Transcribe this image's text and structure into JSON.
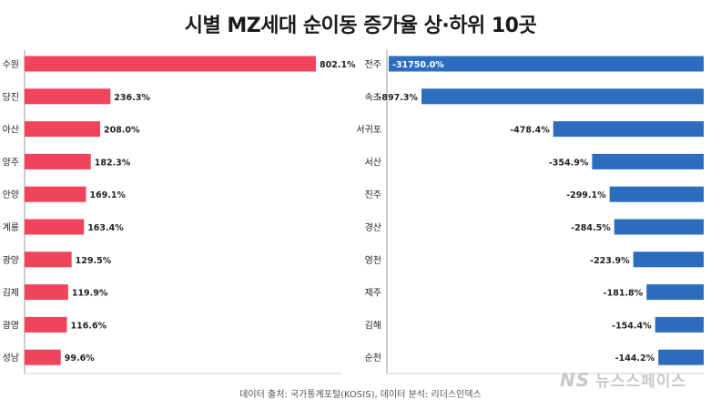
{
  "title": "시별 MZ세대 순이동 증가율 상·하위 10곳",
  "source": "데이터 출처: 국가통계포털(KOSIS), 데이터 분석: 리더스인덱스",
  "watermark": {
    "logo": "NS",
    "text": "뉴스스페이스"
  },
  "colors": {
    "increase": "#f0445d",
    "decrease": "#2c6dbf",
    "axis": "#9a9a9a",
    "text": "#222222"
  },
  "chart_data": [
    {
      "type": "bar",
      "orientation": "horizontal",
      "categories": [
        "수원",
        "당진",
        "아산",
        "양주",
        "안양",
        "계룡",
        "광양",
        "김제",
        "광명",
        "성남"
      ],
      "values": [
        802.1,
        236.3,
        208.0,
        182.3,
        169.1,
        163.4,
        129.5,
        119.9,
        116.6,
        99.6
      ],
      "data_labels": [
        "802.1%",
        "236.3%",
        "208.0%",
        "182.3%",
        "169.1%",
        "163.4%",
        "129.5%",
        "119.9%",
        "116.6%",
        "99.6%"
      ],
      "unit": "%"
    },
    {
      "type": "bar",
      "orientation": "horizontal",
      "categories": [
        "전주",
        "속초",
        "서귀포",
        "서산",
        "진주",
        "경산",
        "영천",
        "제주",
        "김해",
        "순천"
      ],
      "values": [
        -31750.0,
        -897.3,
        -478.4,
        -354.9,
        -299.1,
        -284.5,
        -223.9,
        -181.8,
        -154.4,
        -144.2
      ],
      "data_labels": [
        "-31750.0%",
        "-897.3%",
        "-478.4%",
        "-354.9%",
        "-299.1%",
        "-284.5%",
        "-223.9%",
        "-181.8%",
        "-154.4%",
        "-144.2%"
      ],
      "unit": "%",
      "note_axis_break": true
    }
  ]
}
